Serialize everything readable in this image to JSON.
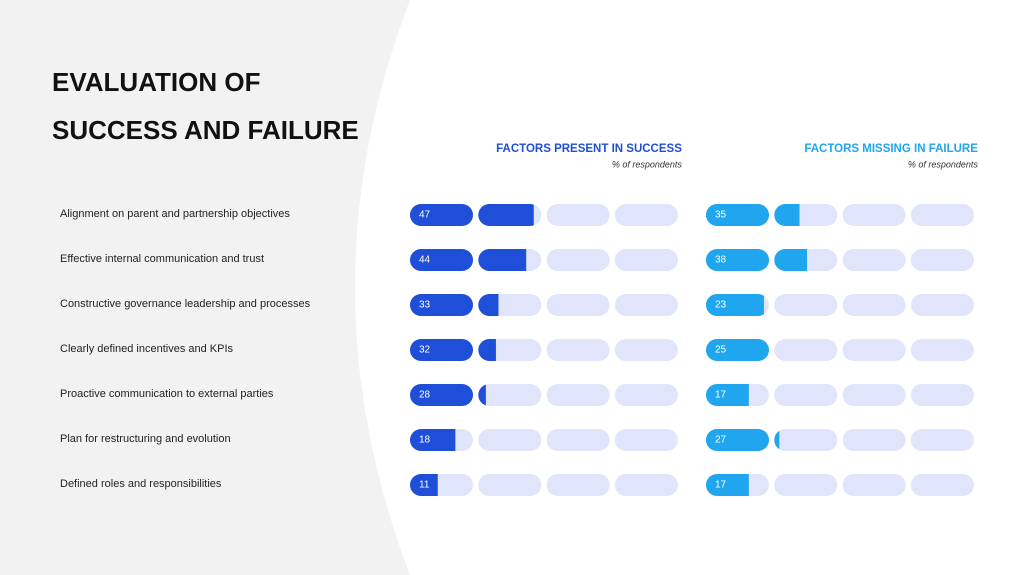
{
  "title": "EVALUATION OF SUCCESS AND FAILURE",
  "chart_data": [
    {
      "type": "bar",
      "title": "FACTORS PRESENT IN SUCCESS",
      "subtitle": "% of respondents",
      "color": "#1f4fd8",
      "track_color": "#e1e5fb",
      "categories": [
        "Alignment on parent and partnership objectives",
        "Effective internal communication and trust",
        "Constructive governance leadership and processes",
        "Clearly defined incentives and KPIs",
        "Proactive communication to external parties",
        "Plan for restructuring and evolution",
        "Defined roles and responsibilities"
      ],
      "values": [
        47,
        44,
        33,
        32,
        28,
        18,
        11
      ],
      "xlim": [
        0,
        100
      ]
    },
    {
      "type": "bar",
      "title": "FACTORS MISSING IN FAILURE",
      "subtitle": "% of respondents",
      "color": "#1fa6ee",
      "track_color": "#e1e5fb",
      "values": [
        35,
        38,
        23,
        25,
        17,
        27,
        17
      ],
      "xlim": [
        0,
        100
      ]
    }
  ]
}
